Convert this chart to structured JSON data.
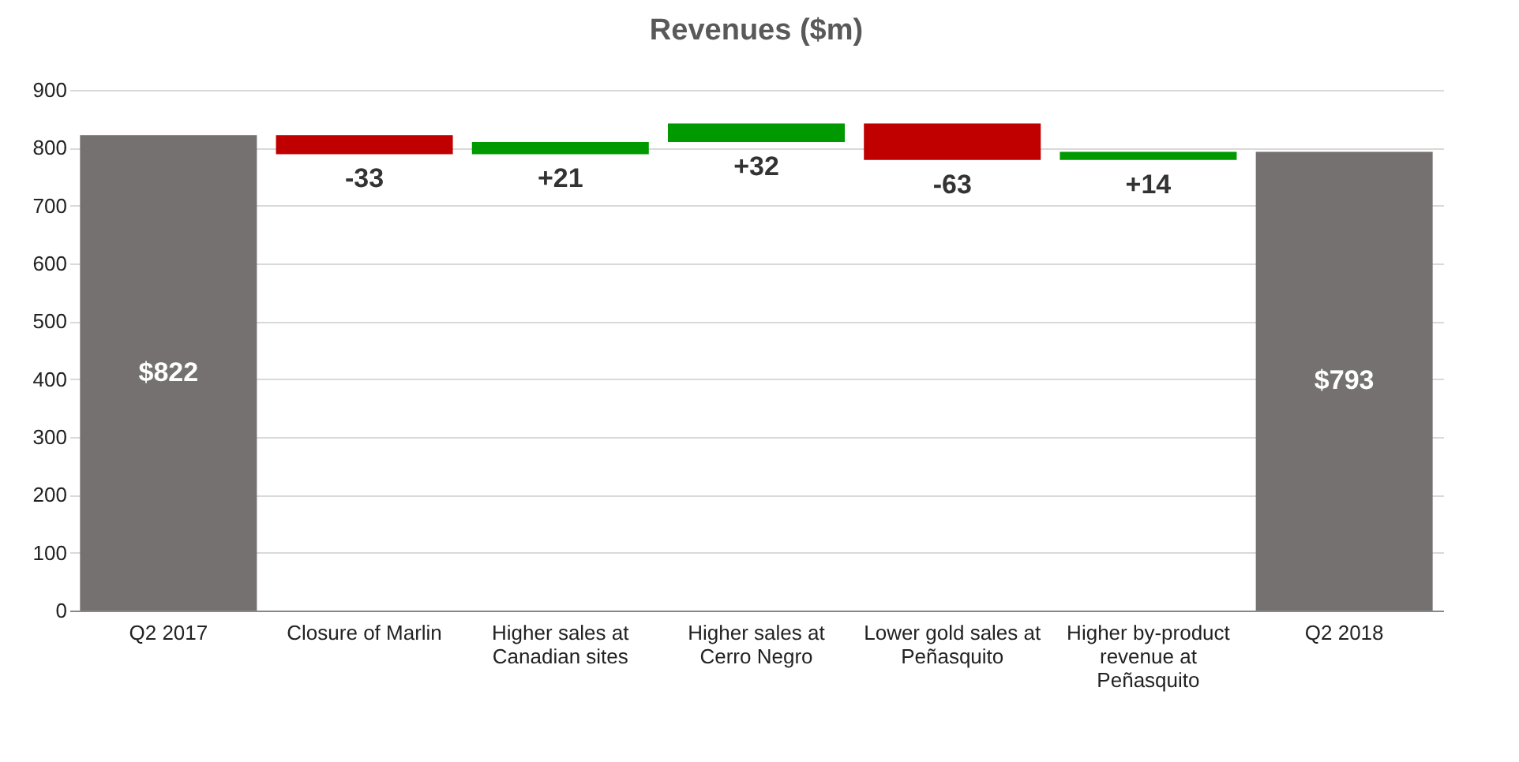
{
  "chart_data": {
    "type": "bar",
    "title": "Revenues ($m)",
    "categories": [
      "Q2 2017",
      "Closure of Marlin",
      "Higher sales at Canadian sites",
      "Higher sales at Cerro Negro",
      "Lower gold sales at Peñasquito",
      "Higher by-product revenue at Peñasquito",
      "Q2 2018"
    ],
    "values": [
      822,
      -33,
      21,
      32,
      -63,
      14,
      793
    ],
    "base": [
      0,
      822,
      789,
      810,
      842,
      779,
      0
    ],
    "colors": [
      "#767171",
      "#c00000",
      "#009900",
      "#009900",
      "#c00000",
      "#009900",
      "#767171"
    ],
    "value_labels": [
      "$822",
      "-33",
      "+21",
      "+32",
      "-63",
      "+14",
      "$793"
    ],
    "ylim": [
      0,
      900
    ],
    "yticks": [
      0,
      100,
      200,
      300,
      400,
      500,
      600,
      700,
      800,
      900
    ],
    "grid": "y",
    "legend": false
  }
}
